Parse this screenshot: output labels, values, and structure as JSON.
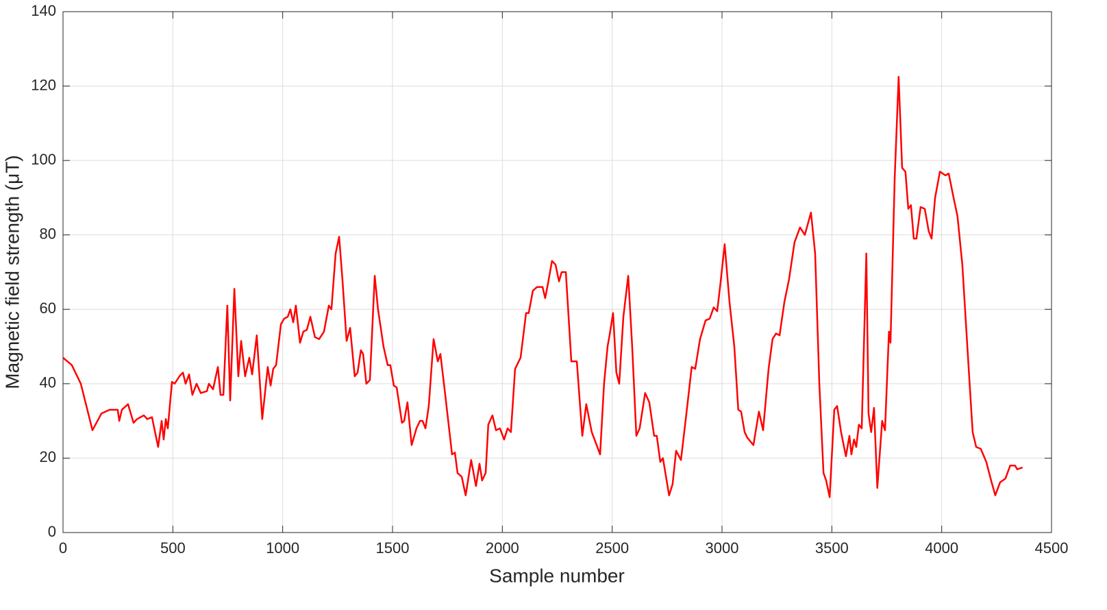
{
  "chart_data": {
    "type": "line",
    "x_label": "Sample number",
    "y_label": "Magnetic field strength (μT)",
    "xlim": [
      0,
      4500
    ],
    "xticks": [
      0,
      500,
      1000,
      1500,
      2000,
      2500,
      3000,
      3500,
      4000,
      4500
    ],
    "ylim": [
      0,
      140
    ],
    "yticks": [
      0,
      20,
      40,
      60,
      80,
      100,
      120,
      140
    ],
    "grid": true,
    "series": [
      {
        "color": "#ff0000",
        "x": [
          0,
          40,
          81,
          134,
          175,
          212,
          249,
          256,
          268,
          296,
          321,
          337,
          368,
          383,
          405,
          433,
          449,
          458,
          468,
          477,
          496,
          508,
          530,
          546,
          558,
          574,
          589,
          608,
          627,
          655,
          664,
          683,
          705,
          717,
          730,
          748,
          761,
          780,
          798,
          811,
          829,
          848,
          861,
          882,
          907,
          932,
          945,
          957,
          970,
          992,
          1007,
          1023,
          1035,
          1048,
          1060,
          1079,
          1094,
          1110,
          1126,
          1147,
          1166,
          1188,
          1210,
          1222,
          1241,
          1257,
          1272,
          1291,
          1307,
          1328,
          1341,
          1356,
          1366,
          1381,
          1397,
          1419,
          1434,
          1459,
          1478,
          1490,
          1506,
          1519,
          1543,
          1553,
          1568,
          1587,
          1609,
          1625,
          1637,
          1650,
          1665,
          1687,
          1706,
          1718,
          1740,
          1771,
          1784,
          1796,
          1815,
          1833,
          1858,
          1880,
          1896,
          1908,
          1924,
          1936,
          1955,
          1971,
          1989,
          2008,
          2024,
          2039,
          2058,
          2083,
          2108,
          2120,
          2139,
          2158,
          2183,
          2195,
          2208,
          2226,
          2242,
          2258,
          2270,
          2289,
          2314,
          2339,
          2364,
          2382,
          2407,
          2426,
          2445,
          2463,
          2479,
          2488,
          2504,
          2519,
          2532,
          2551,
          2573,
          2591,
          2610,
          2625,
          2650,
          2669,
          2691,
          2703,
          2719,
          2731,
          2759,
          2775,
          2791,
          2813,
          2834,
          2862,
          2878,
          2900,
          2925,
          2944,
          2962,
          2978,
          2993,
          3012,
          3034,
          3056,
          3074,
          3087,
          3103,
          3115,
          3143,
          3168,
          3187,
          3212,
          3230,
          3246,
          3262,
          3284,
          3305,
          3330,
          3355,
          3377,
          3405,
          3424,
          3443,
          3462,
          3474,
          3490,
          3511,
          3524,
          3542,
          3564,
          3580,
          3589,
          3601,
          3611,
          3623,
          3636,
          3657,
          3667,
          3679,
          3692,
          3707,
          3729,
          3742,
          3760,
          3767,
          3786,
          3804,
          3820,
          3835,
          3848,
          3860,
          3873,
          3885,
          3904,
          3923,
          3941,
          3954,
          3970,
          3992,
          4017,
          4032,
          4054,
          4072,
          4094,
          4122,
          4141,
          4157,
          4178,
          4203,
          4225,
          4244,
          4266,
          4290,
          4312,
          4334,
          4344,
          4368
        ],
        "values": [
          47,
          45,
          40,
          27.5,
          32,
          33,
          33,
          30,
          33,
          34.5,
          29.5,
          30.5,
          31.5,
          30.5,
          31,
          23,
          30,
          25,
          30.5,
          28,
          40.5,
          40,
          42,
          43,
          40,
          42.5,
          37,
          40,
          37.5,
          38,
          40,
          38.5,
          44.5,
          37,
          37,
          61,
          35.5,
          65.5,
          42,
          51.5,
          42,
          47,
          42.5,
          53,
          30.5,
          44.5,
          39.5,
          44,
          45,
          56,
          57.5,
          58,
          60,
          56.5,
          61,
          51,
          54,
          54.5,
          58,
          52.5,
          52,
          54,
          61,
          60,
          75,
          79.5,
          68,
          51.5,
          55,
          42,
          43,
          49,
          48,
          40,
          41,
          69,
          60,
          50,
          45,
          45,
          39.5,
          39,
          29.5,
          30,
          35,
          23.5,
          28,
          30,
          30,
          28,
          34,
          52,
          46,
          48,
          37,
          21,
          21.5,
          16,
          15,
          10,
          19.5,
          12.5,
          18.5,
          14,
          16,
          29,
          31.5,
          27.5,
          28,
          25,
          28,
          27,
          44,
          47,
          59,
          59,
          65,
          66,
          66,
          63,
          67,
          73,
          72,
          67.5,
          70,
          70,
          46,
          46,
          26,
          34.5,
          27,
          24,
          21,
          40,
          50,
          53,
          59,
          43,
          40,
          58,
          69,
          50,
          26,
          28,
          37.5,
          35,
          26,
          26,
          19,
          20,
          10,
          13,
          22,
          19.5,
          30,
          44.5,
          44,
          52,
          57,
          57.5,
          60.5,
          59.5,
          67,
          77.5,
          62,
          50,
          33,
          32.5,
          27,
          25.5,
          23.5,
          32.5,
          27.5,
          44,
          52,
          53.5,
          53,
          62,
          68,
          78,
          82,
          80,
          86,
          75,
          40,
          16,
          14,
          9.5,
          33,
          34,
          27,
          20.5,
          26,
          21,
          25,
          23,
          29,
          28,
          75,
          32,
          27,
          33.5,
          12,
          30,
          27.5,
          54,
          51,
          95,
          122.5,
          98,
          97,
          87,
          88,
          79,
          79,
          87.5,
          87,
          81,
          79,
          90,
          97,
          96,
          96.5,
          90,
          85,
          72,
          45,
          27,
          23,
          22.5,
          19,
          14,
          10,
          13.5,
          14.5,
          18,
          18,
          17,
          17.5
        ]
      }
    ]
  }
}
